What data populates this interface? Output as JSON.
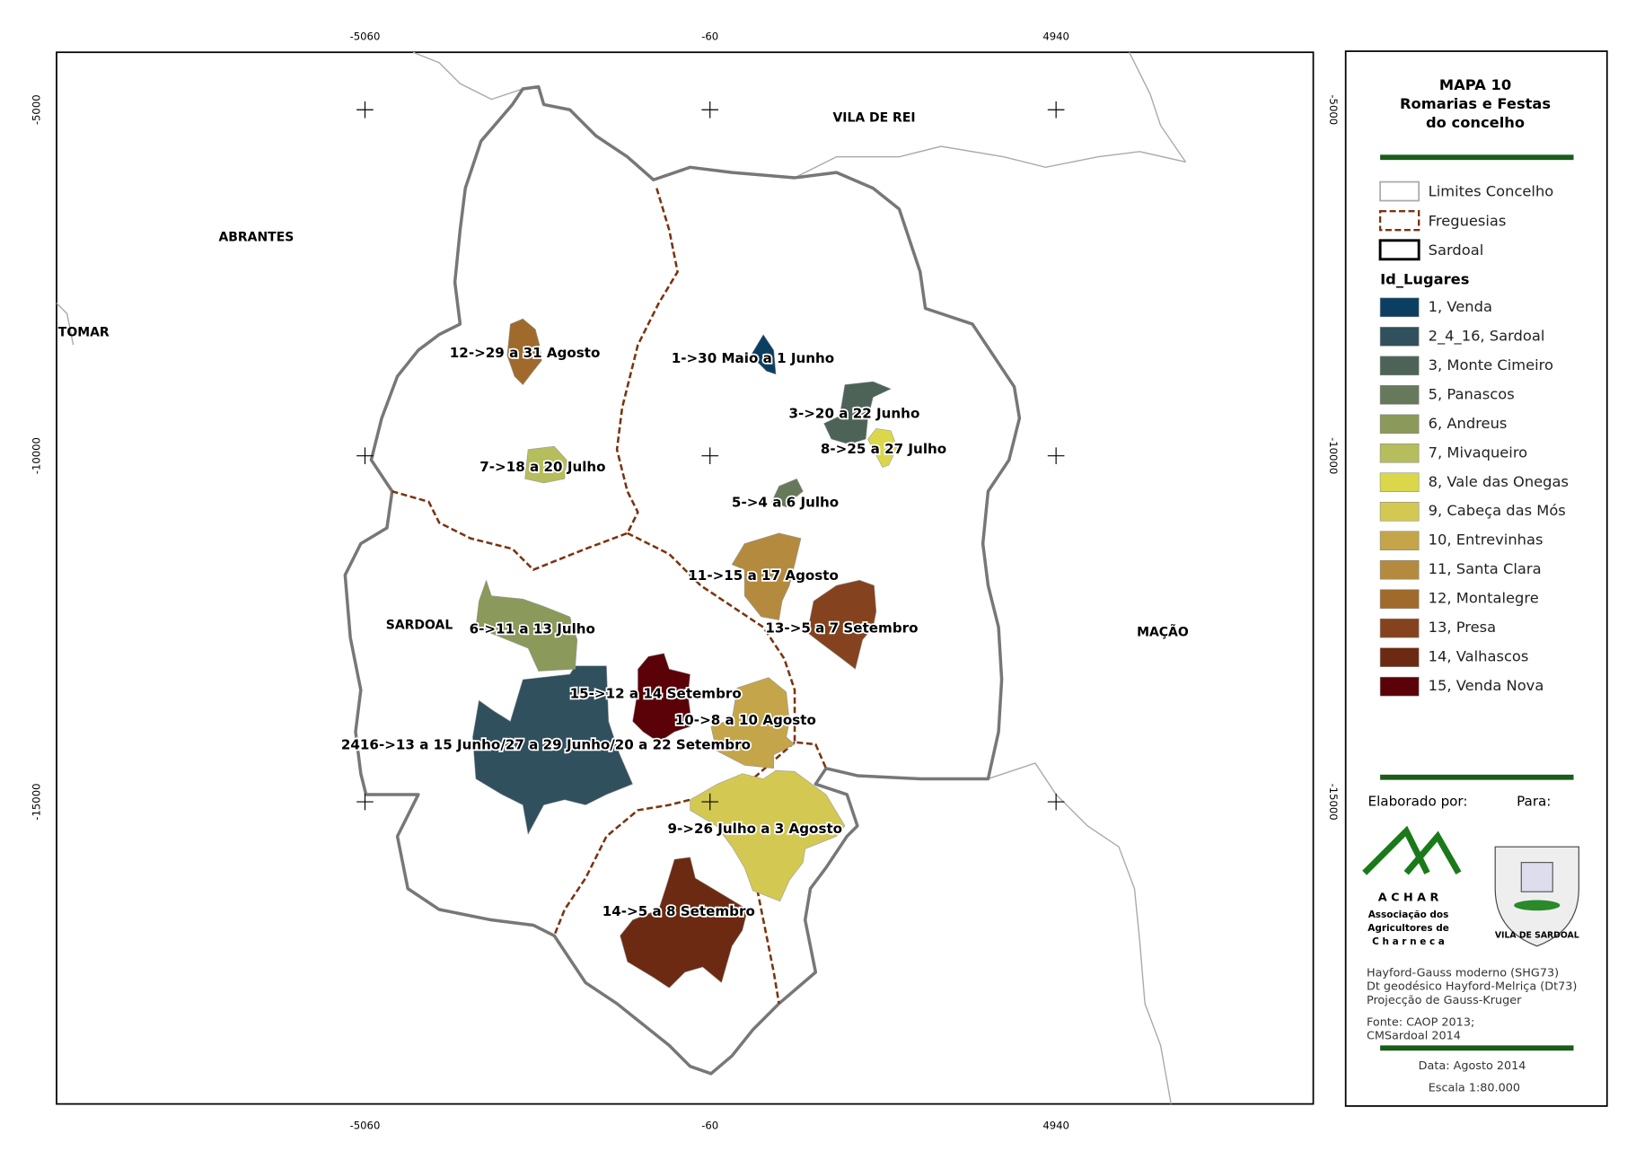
{
  "map": {
    "grid_top": [
      "-5060",
      "-60",
      "4940"
    ],
    "grid_bottom": [
      "-5060",
      "-60",
      "4940"
    ],
    "grid_left": [
      "-5000",
      "-10000",
      "-15000"
    ],
    "grid_right": [
      "-5000",
      "-10000",
      "-15000"
    ],
    "places": [
      "VILA DE REI",
      "ABRANTES",
      "TOMAR",
      "SARDOAL",
      "MAÇÃO"
    ],
    "labels": [
      "12->29 a 31 Agosto",
      "1->30 Maio a 1 Junho",
      "3->20 a 22 Junho",
      "8->25 a 27 Julho",
      "7->18 a 20 Julho",
      "5->4 a 6 Julho",
      "11->15 a 17 Agosto",
      "13->5 a 7 Setembro",
      "6->11 a 13 Julho",
      "15->12 a 14 Setembro",
      "10->8 a 10 Agosto",
      "2416->13 a 15 Junho/27 a 29 Junho/20 a 22 Setembro",
      "9->26 Julho a 3 Agosto",
      "14->5 a 8 Setembro"
    ]
  },
  "legend": {
    "title": [
      "MAPA 10",
      "Romarias e Festas",
      "do concelho"
    ],
    "lines": [
      "Limites Concelho",
      "Freguesias",
      "Sardoal"
    ],
    "header": "Id_Lugares",
    "items": [
      {
        "label": "1, Venda",
        "color": "#0b3f62"
      },
      {
        "label": "2_4_16, Sardoal",
        "color": "#30505e"
      },
      {
        "label": "3, Monte Cimeiro",
        "color": "#4d6358"
      },
      {
        "label": "5, Panascos",
        "color": "#66795a"
      },
      {
        "label": "6, Andreus",
        "color": "#8b995a"
      },
      {
        "label": "7, Mivaqueiro",
        "color": "#b6bd5c"
      },
      {
        "label": "8, Vale das Onegas",
        "color": "#dad84a"
      },
      {
        "label": "9, Cabeça das Mós",
        "color": "#d3c952"
      },
      {
        "label": "10, Entrevinhas",
        "color": "#c4a54a"
      },
      {
        "label": "11, Santa Clara",
        "color": "#b48a3f"
      },
      {
        "label": "12, Montalegre",
        "color": "#a06a2d"
      },
      {
        "label": "13, Presa",
        "color": "#84431e"
      },
      {
        "label": "14, Valhascos",
        "color": "#6d2a12"
      },
      {
        "label": "15, Venda Nova",
        "color": "#5a0207"
      }
    ]
  },
  "credits": {
    "made_by": "Elaborado por:",
    "for": "Para:",
    "achar": [
      "A C H A R",
      "Associação dos",
      "Agricultores de",
      "C h a r n e c a"
    ],
    "crest": "VILA DE SARDOAL",
    "projection": [
      "Hayford-Gauss moderno (SHG73)",
      "Dt geodésico Hayford-Melriça (Dt73)",
      "Projecção de Gauss-Kruger"
    ],
    "source": [
      "Fonte: CAOP 2013;",
      "CMSardoal 2014"
    ],
    "date": "Data: Agosto 2014",
    "scale": "Escala 1:80.000"
  }
}
